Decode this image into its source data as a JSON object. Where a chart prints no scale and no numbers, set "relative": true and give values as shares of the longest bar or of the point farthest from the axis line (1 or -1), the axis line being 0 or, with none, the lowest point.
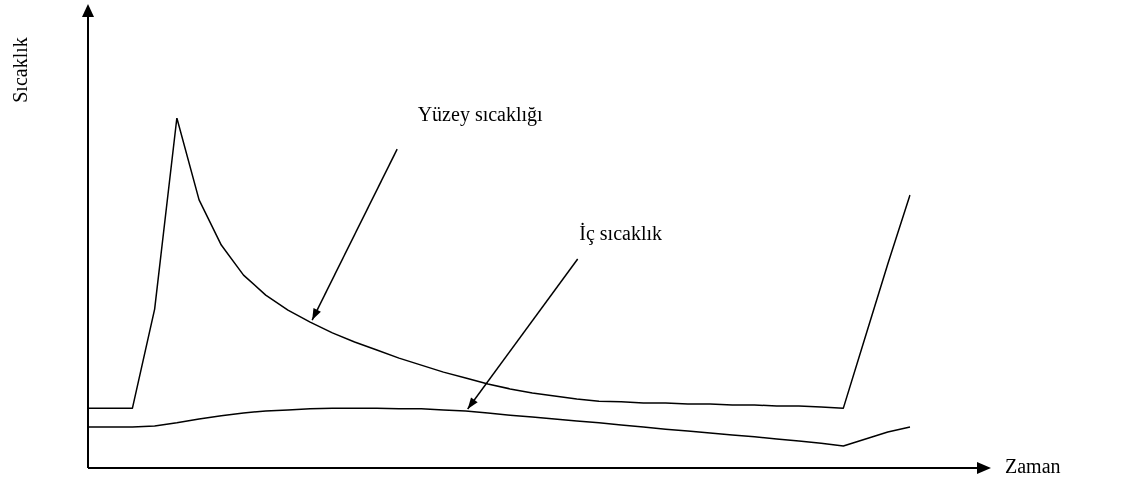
{
  "chart_data": {
    "type": "line",
    "relative": true,
    "xlabel": "Zaman",
    "ylabel": "Sıcaklık",
    "marker": "none",
    "line_style": "solid",
    "annotations": [
      "Yüzey sıcaklığı",
      "İç sıcaklık"
    ],
    "categories": [
      null,
      null,
      null,
      null,
      null,
      null,
      null,
      null,
      null,
      null,
      null,
      null,
      null,
      null,
      null,
      null,
      null,
      null,
      null,
      null,
      null,
      null,
      null,
      null,
      null,
      null,
      null,
      null,
      null,
      null,
      null,
      null,
      null,
      null,
      null,
      null,
      null,
      null
    ],
    "series": [
      {
        "color": "#000000",
        "values": [
          0.171,
          0.171,
          0.171,
          0.454,
          1,
          0.766,
          0.637,
          0.551,
          0.494,
          0.451,
          0.417,
          0.386,
          0.36,
          0.337,
          0.314,
          0.294,
          0.274,
          0.257,
          0.24,
          0.226,
          0.214,
          0.206,
          0.197,
          0.191,
          0.189,
          0.186,
          0.186,
          0.183,
          0.183,
          0.18,
          0.18,
          0.177,
          0.177,
          0.174,
          0.171,
          0.377,
          0.583,
          0.78
        ]
      },
      {
        "color": "#000000",
        "values": [
          0.117,
          0.117,
          0.117,
          0.12,
          0.129,
          0.14,
          0.149,
          0.157,
          0.163,
          0.166,
          0.169,
          0.171,
          0.171,
          0.171,
          0.169,
          0.169,
          0.166,
          0.163,
          0.157,
          0.151,
          0.146,
          0.14,
          0.134,
          0.129,
          0.123,
          0.117,
          0.111,
          0.106,
          0.1,
          0.094,
          0.089,
          0.083,
          0.077,
          0.071,
          0.063,
          0.083,
          0.103,
          0.117
        ]
      }
    ]
  }
}
